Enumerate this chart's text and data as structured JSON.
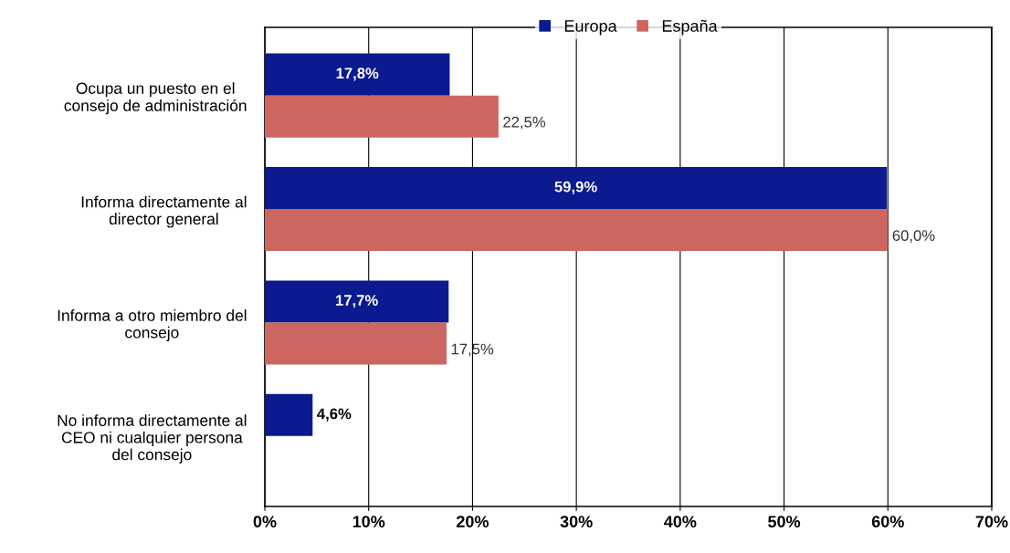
{
  "chart_data": {
    "type": "bar",
    "orientation": "horizontal",
    "categories": [
      "Ocupa un puesto en el\nconsejo de administración",
      "Informa directamente al\ndirector general",
      "Informa a otro miembro del\nconsejo",
      "No informa directamente al\nCEO ni cualquier persona\ndel consejo"
    ],
    "series": [
      {
        "name": "Europa",
        "color": "#0b1a8e",
        "values": [
          17.8,
          59.9,
          17.7,
          4.6
        ],
        "value_labels": [
          "17,8%",
          "59,9%",
          "17,7%",
          "4,6%"
        ]
      },
      {
        "name": "España",
        "color": "#cd6661",
        "values": [
          22.5,
          60.0,
          17.5,
          null
        ],
        "value_labels": [
          "22,5%",
          "60,0%",
          "17,5%",
          null
        ]
      }
    ],
    "xlim": [
      0,
      70
    ],
    "xticks": [
      {
        "value": 0,
        "label": "0%"
      },
      {
        "value": 10,
        "label": "10%"
      },
      {
        "value": 20,
        "label": "20%"
      },
      {
        "value": 30,
        "label": "30%"
      },
      {
        "value": 40,
        "label": "40%"
      },
      {
        "value": 50,
        "label": "50%"
      },
      {
        "value": 60,
        "label": "60%"
      },
      {
        "value": 70,
        "label": "70%"
      }
    ],
    "grid": "x",
    "legend": "top"
  }
}
